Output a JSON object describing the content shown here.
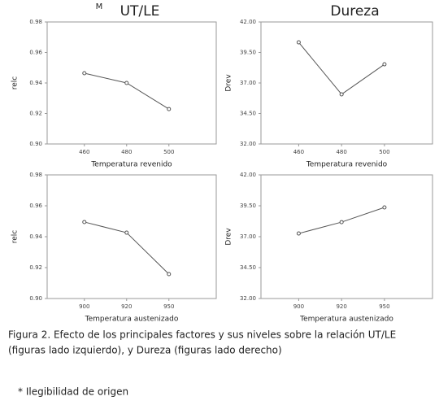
{
  "chart_data": [
    {
      "type": "line",
      "title_prefix": "M",
      "title": "UT/LE",
      "ylabel": "relc",
      "xlabel": "Temperatura revenido",
      "categories": [
        "460",
        "480",
        "500"
      ],
      "values": [
        0.9464,
        0.94,
        0.9229
      ],
      "color": "#555555",
      "ylim": [
        0.9,
        0.98
      ],
      "yticks": [
        {
          "value": 0.9,
          "label": "0.90"
        },
        0.92,
        0.94,
        0.96,
        0.98
      ]
    },
    {
      "type": "line",
      "title": "Dureza",
      "ylabel": "Drev",
      "xlabel": "Temperatura revenido",
      "categories": [
        "460",
        "480",
        "500"
      ],
      "values": [
        40.33,
        36.07,
        38.53
      ],
      "color": "#555555",
      "ylim": [
        32,
        42
      ],
      "yticks": [
        {
          "value": 32,
          "label": "32.00"
        },
        {
          "value": 34.5,
          "label": "34.50"
        },
        {
          "value": 37,
          "label": "37.00"
        },
        {
          "value": 39.5,
          "label": "39.50"
        },
        {
          "value": 42,
          "label": "42.00"
        }
      ]
    },
    {
      "type": "line",
      "ylabel": "relc",
      "xlabel": "Temperatura austenizado",
      "categories": [
        "900",
        "920",
        "950"
      ],
      "values": [
        0.9495,
        0.9426,
        0.9158
      ],
      "color": "#555555",
      "ylim": [
        0.9,
        0.98
      ],
      "yticks": [
        {
          "value": 0.9,
          "label": "0.90"
        },
        0.92,
        0.94,
        0.96,
        0.98
      ]
    },
    {
      "type": "line",
      "ylabel": "Drev",
      "xlabel": "Temperatura austenizado",
      "categories": [
        "900",
        "920",
        "950"
      ],
      "values": [
        37.26,
        38.18,
        39.37
      ],
      "color": "#555555",
      "ylim": [
        32,
        42
      ],
      "yticks": [
        {
          "value": 32,
          "label": "32.00"
        },
        {
          "value": 34.5,
          "label": "34.50"
        },
        {
          "value": 37,
          "label": "37.00"
        },
        {
          "value": 39.5,
          "label": "39.50"
        },
        {
          "value": 42,
          "label": "42.00"
        }
      ]
    }
  ],
  "figure": {
    "caption": [
      "Figura 2. Efecto de los principales factores y sus niveles sobre la relación UT/LE",
      "(figuras lado izquierdo), y Dureza (figuras lado derecho)"
    ],
    "note": "* Ilegibilidad de origen"
  }
}
